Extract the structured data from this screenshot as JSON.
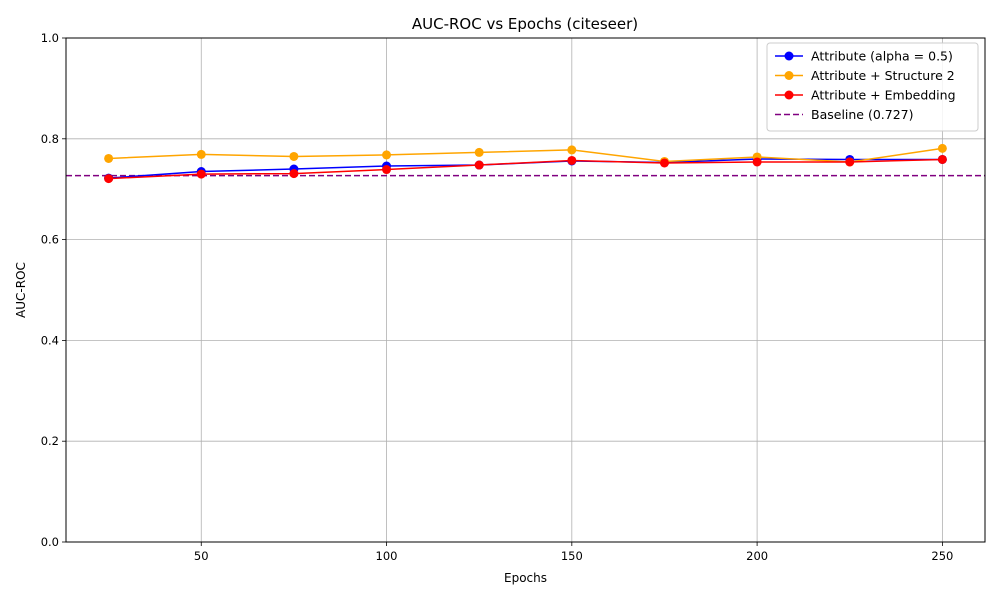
{
  "chart_data": {
    "type": "line",
    "title": "AUC-ROC vs Epochs (citeseer)",
    "xlabel": "Epochs",
    "ylabel": "AUC-ROC",
    "x": [
      25,
      50,
      75,
      100,
      125,
      150,
      175,
      200,
      225,
      250
    ],
    "xlim": [
      13.5,
      261.5
    ],
    "ylim": [
      0.0,
      1.0
    ],
    "xticks": [
      "50",
      "100",
      "150",
      "200",
      "250"
    ],
    "yticks": [
      "0.0",
      "0.2",
      "0.4",
      "0.6",
      "0.8",
      "1.0"
    ],
    "grid": true,
    "legend_position": "top-right",
    "series": [
      {
        "name": "Attribute (alpha = 0.5)",
        "color": "#0000ff",
        "values": [
          0.722,
          0.735,
          0.74,
          0.746,
          0.748,
          0.756,
          0.753,
          0.76,
          0.759,
          0.759
        ]
      },
      {
        "name": "Attribute + Structure 2",
        "color": "#ffa500",
        "values": [
          0.761,
          0.769,
          0.765,
          0.768,
          0.773,
          0.778,
          0.755,
          0.764,
          0.754,
          0.781
        ]
      },
      {
        "name": "Attribute + Embedding",
        "color": "#ff0000",
        "values": [
          0.721,
          0.73,
          0.731,
          0.739,
          0.748,
          0.757,
          0.752,
          0.754,
          0.754,
          0.759
        ]
      }
    ],
    "baseline": {
      "name": "Baseline (0.727)",
      "value": 0.727,
      "color": "#800080"
    }
  }
}
